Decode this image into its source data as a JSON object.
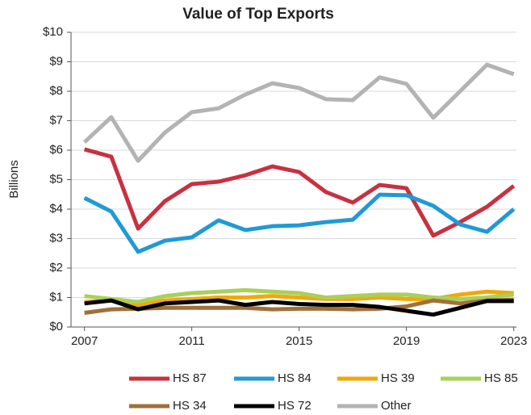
{
  "chart_data": {
    "type": "line",
    "title": "Value of Top Exports",
    "y_label": "Billions",
    "x": [
      2007,
      2008,
      2009,
      2010,
      2011,
      2012,
      2013,
      2014,
      2015,
      2016,
      2017,
      2018,
      2019,
      2020,
      2021,
      2022,
      2023
    ],
    "xlim": [
      2006.5,
      2023.1
    ],
    "xticks": [
      2007,
      2011,
      2015,
      2019,
      2023
    ],
    "ylim": [
      0,
      10
    ],
    "yticks": [
      {
        "value": 0,
        "label": "$0"
      },
      {
        "value": 1,
        "label": "$1"
      },
      {
        "value": 2,
        "label": "$2"
      },
      {
        "value": 3,
        "label": "$3"
      },
      {
        "value": 4,
        "label": "$4"
      },
      {
        "value": 5,
        "label": "$5"
      },
      {
        "value": 6,
        "label": "$6"
      },
      {
        "value": 7,
        "label": "$7"
      },
      {
        "value": 8,
        "label": "$8"
      },
      {
        "value": 9,
        "label": "$9"
      },
      {
        "value": 10,
        "label": "$10"
      }
    ],
    "grid": true,
    "legend": "bottom",
    "series": [
      {
        "name": "HS 87",
        "color": "#c8313f",
        "values": [
          6.03,
          5.78,
          3.34,
          4.27,
          4.85,
          4.93,
          5.15,
          5.45,
          5.26,
          4.58,
          4.22,
          4.82,
          4.71,
          3.1,
          3.56,
          4.08,
          4.79
        ]
      },
      {
        "name": "HS 84",
        "color": "#1f9ad6",
        "values": [
          4.38,
          3.92,
          2.55,
          2.93,
          3.04,
          3.62,
          3.29,
          3.42,
          3.45,
          3.56,
          3.64,
          4.49,
          4.47,
          4.11,
          3.48,
          3.23,
          4.0
        ]
      },
      {
        "name": "HS 39",
        "color": "#f0a90a",
        "values": [
          0.85,
          0.9,
          0.75,
          0.9,
          0.95,
          1.0,
          1.0,
          1.05,
          1.0,
          0.95,
          0.95,
          1.0,
          0.95,
          0.95,
          1.1,
          1.2,
          1.15
        ]
      },
      {
        "name": "HS 85",
        "color": "#a9d05a",
        "values": [
          1.05,
          0.95,
          0.85,
          1.05,
          1.15,
          1.2,
          1.25,
          1.2,
          1.15,
          1.0,
          1.05,
          1.1,
          1.1,
          1.0,
          0.95,
          1.0,
          1.1
        ]
      },
      {
        "name": "HS 34",
        "color": "#a0703a",
        "values": [
          0.48,
          0.6,
          0.62,
          0.65,
          0.65,
          0.65,
          0.65,
          0.6,
          0.62,
          0.62,
          0.6,
          0.62,
          0.7,
          0.9,
          0.8,
          0.9,
          0.92
        ]
      },
      {
        "name": "HS 72",
        "color": "#000000",
        "values": [
          0.8,
          0.9,
          0.6,
          0.8,
          0.85,
          0.9,
          0.75,
          0.85,
          0.78,
          0.75,
          0.75,
          0.68,
          0.55,
          0.42,
          0.65,
          0.88,
          0.88
        ]
      },
      {
        "name": "Other",
        "color": "#b3b3b3",
        "values": [
          6.27,
          7.12,
          5.64,
          6.6,
          7.29,
          7.42,
          7.89,
          8.27,
          8.11,
          7.73,
          7.7,
          8.47,
          8.25,
          7.1,
          8.0,
          8.9,
          8.58
        ]
      }
    ]
  }
}
